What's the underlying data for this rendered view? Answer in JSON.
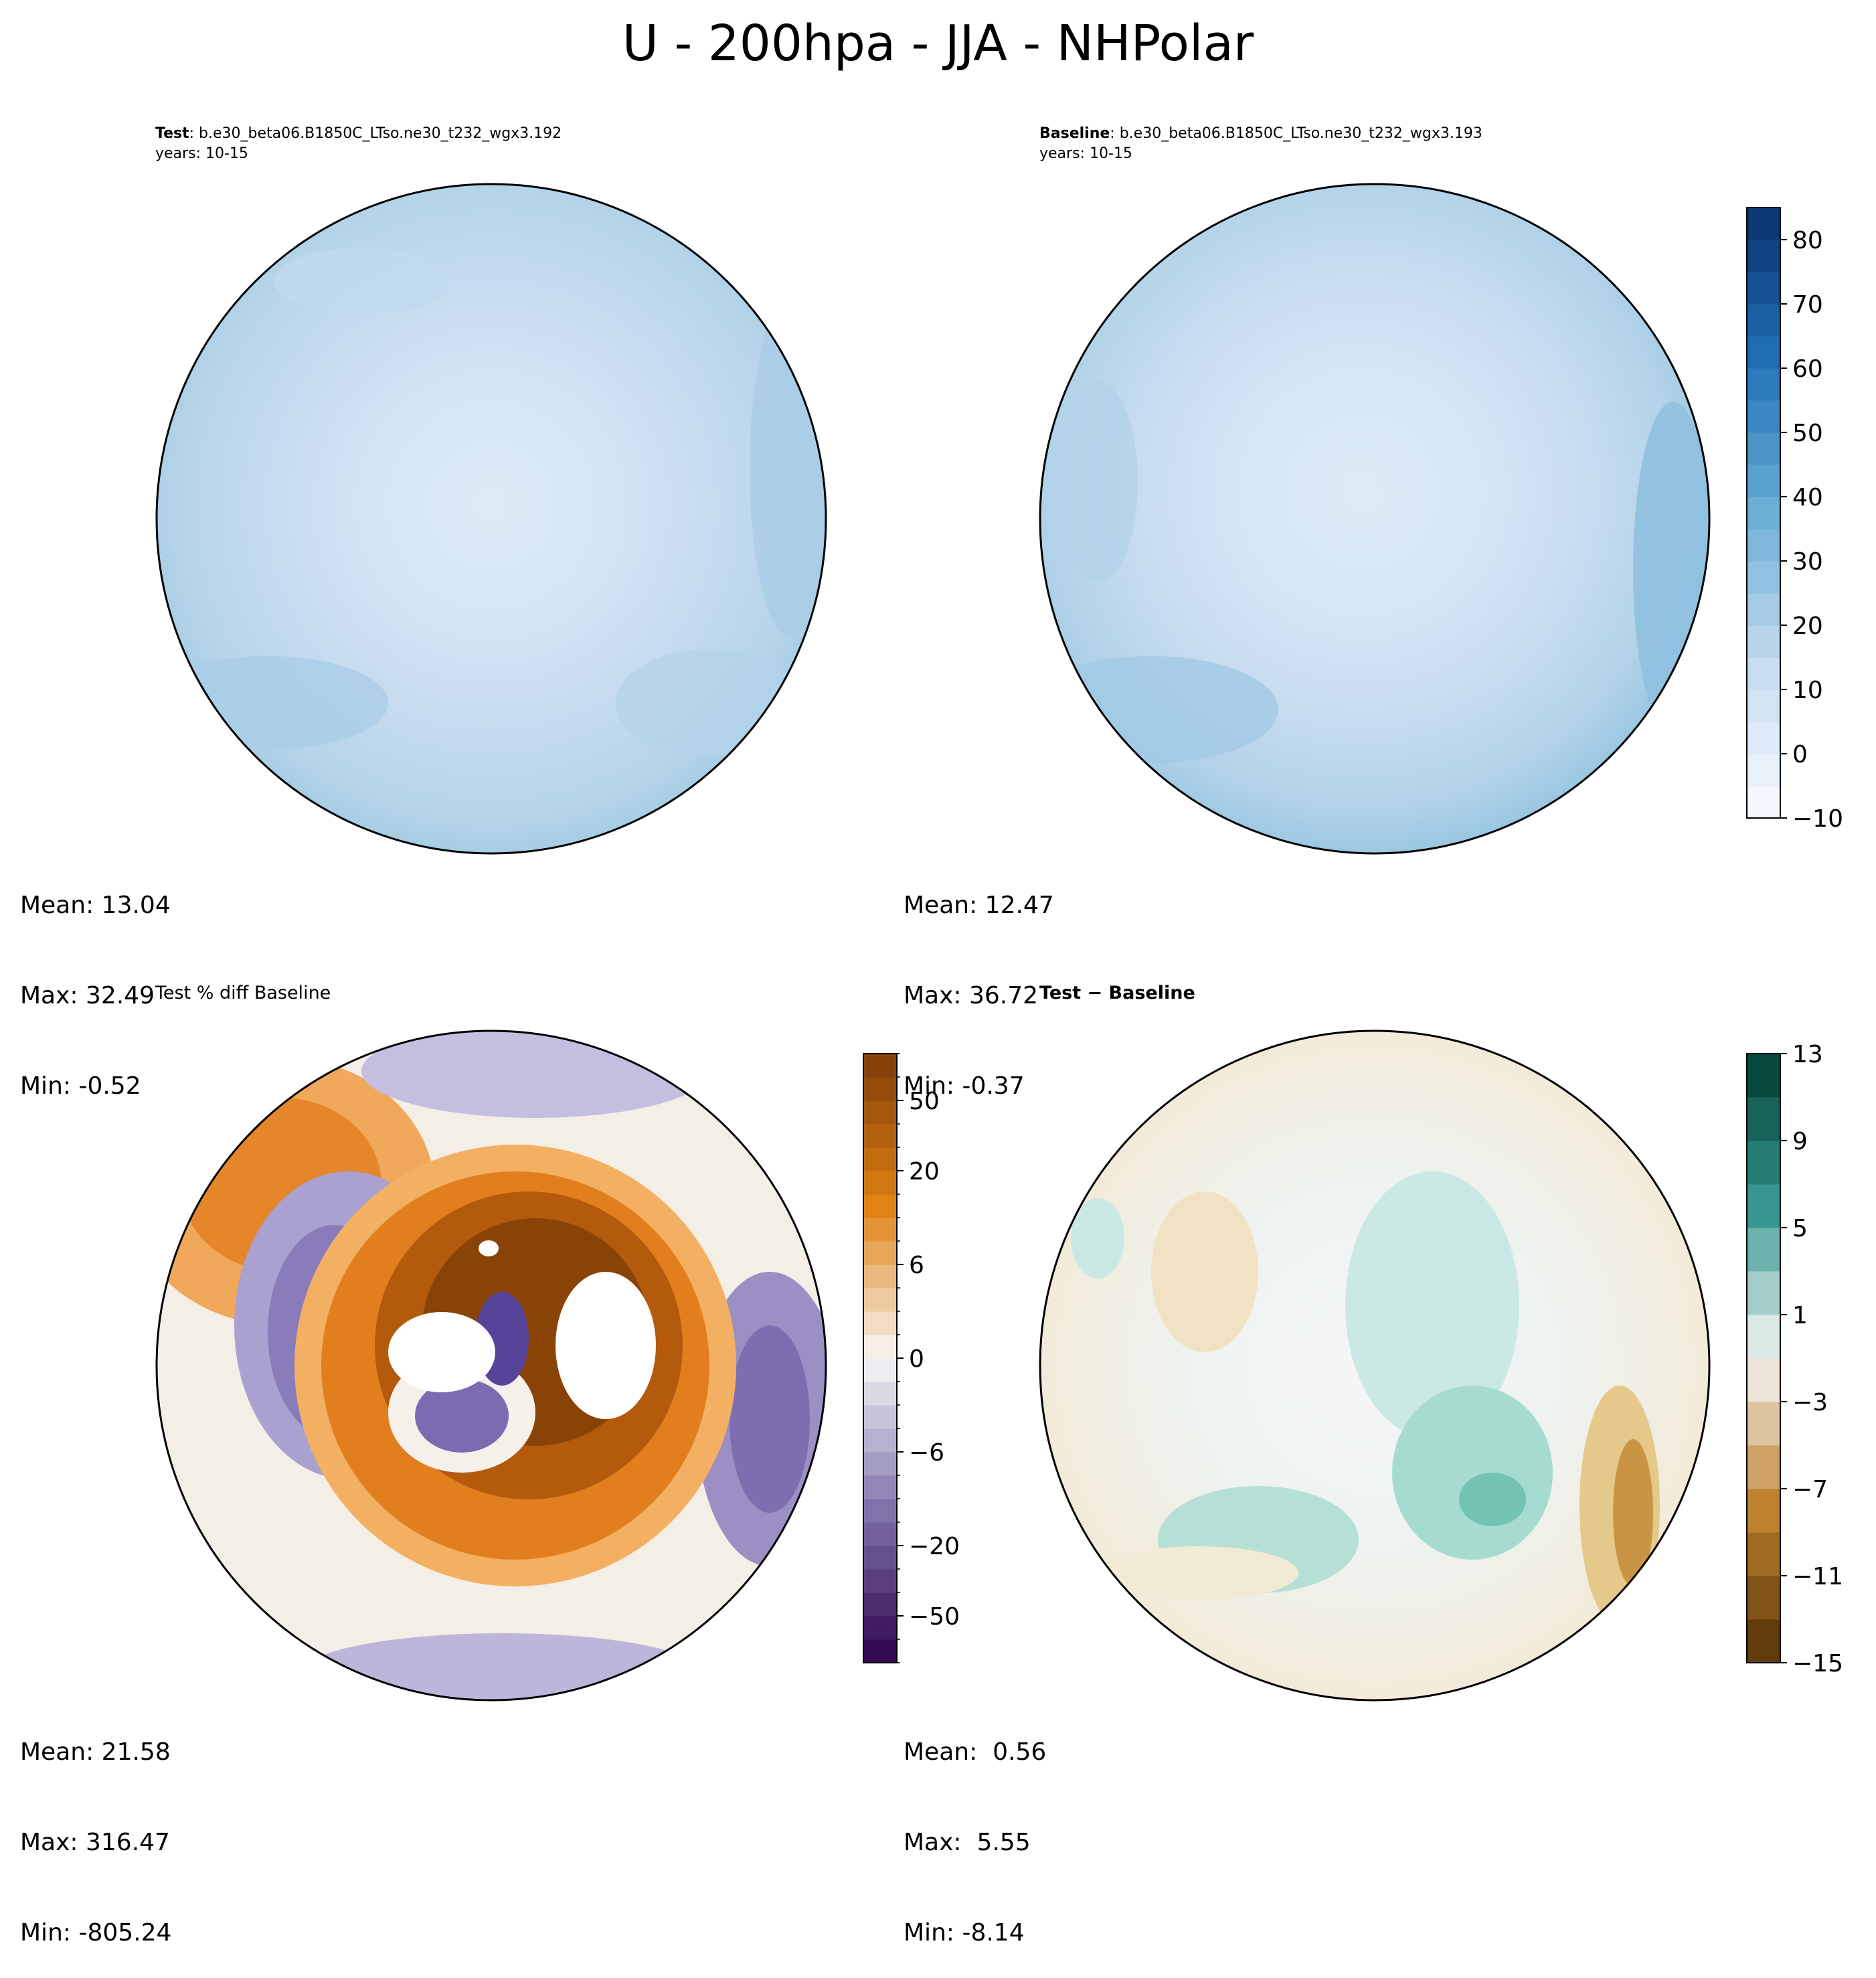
{
  "figure": {
    "title": "U - 200hpa - JJA - NHPolar"
  },
  "chart_data": [
    {
      "type": "heatmap",
      "panel": "test",
      "projection": "north-polar-stereographic",
      "title_bold": "Test",
      "title_rest": ": b.e30_beta06.B1850C_LTso.ne30_t232_wgx3.192",
      "years": "years: 10-15",
      "colormap": "Blues",
      "colorbar": "shared-with-baseline",
      "stats": {
        "mean": "Mean: 13.04",
        "max": "Max: 32.49",
        "min": "Min: -0.52"
      }
    },
    {
      "type": "heatmap",
      "panel": "baseline",
      "projection": "north-polar-stereographic",
      "title_bold": "Baseline",
      "title_rest": ": b.e30_beta06.B1850C_LTso.ne30_t232_wgx3.193",
      "years": "years: 10-15",
      "colormap": "Blues",
      "colorbar": {
        "levels": [
          -10,
          -5,
          0,
          5,
          10,
          15,
          20,
          25,
          30,
          35,
          40,
          45,
          50,
          55,
          60,
          65,
          70,
          75,
          80,
          85
        ],
        "tick_labels": [
          "80",
          "70",
          "60",
          "50",
          "40",
          "30",
          "20",
          "10",
          "0",
          "−10"
        ],
        "tick_values": [
          80,
          70,
          60,
          50,
          40,
          30,
          20,
          10,
          0,
          -10
        ],
        "range": [
          -10,
          85
        ]
      },
      "stats": {
        "mean": "Mean: 12.47",
        "max": "Max: 36.72",
        "min": "Min: -0.37"
      }
    },
    {
      "type": "heatmap",
      "panel": "percent-diff",
      "projection": "north-polar-stereographic",
      "title": "Test % diff Baseline",
      "colormap": "PuOr_r",
      "colorbar": {
        "levels": [
          -100,
          -75,
          -50,
          -40,
          -30,
          -20,
          -15,
          -10,
          -8,
          -6,
          -4,
          -2,
          -1,
          0,
          1,
          2,
          4,
          6,
          8,
          10,
          15,
          20,
          30,
          40,
          50,
          75,
          100
        ],
        "tick_labels": [
          "50",
          "20",
          "6",
          "0",
          "−6",
          "−20",
          "−50"
        ],
        "tick_values": [
          50,
          20,
          6,
          0,
          -6,
          -20,
          -50
        ]
      },
      "stats": {
        "mean": "Mean: 21.58",
        "max": "Max: 316.47",
        "min": "Min: -805.24"
      }
    },
    {
      "type": "heatmap",
      "panel": "difference",
      "projection": "north-polar-stereographic",
      "title_bold": "Test − Baseline",
      "colormap": "BrBG",
      "colorbar": {
        "levels": [
          -15,
          -13,
          -11,
          -9,
          -7,
          -5,
          -3,
          -1,
          1,
          3,
          5,
          7,
          9,
          11,
          13
        ],
        "tick_labels": [
          "13",
          "9",
          "5",
          "1",
          "−3",
          "−7",
          "−11",
          "−15"
        ],
        "tick_values": [
          13,
          9,
          5,
          1,
          -3,
          -7,
          -11,
          -15
        ]
      },
      "stats": {
        "mean": "Mean:  0.56",
        "max": "Max:  5.55",
        "min": "Min: -8.14"
      }
    }
  ]
}
